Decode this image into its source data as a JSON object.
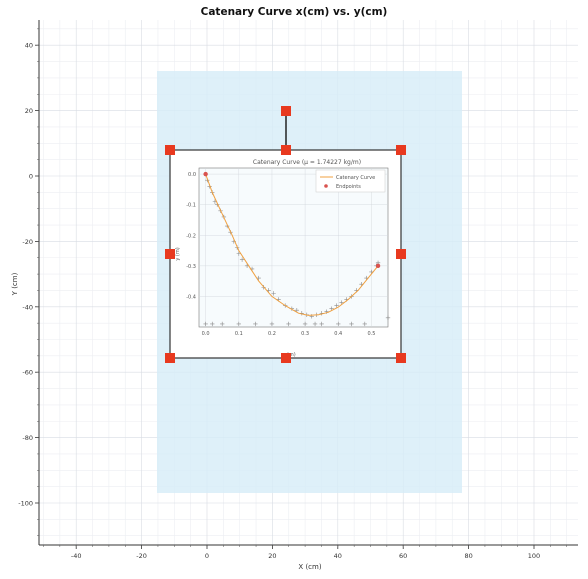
{
  "window": {
    "title": "Catenary Curve x(cm) vs. y(cm)"
  },
  "axes": {
    "xlabel": "X (cm)",
    "ylabel": "Y (cm)",
    "x_ticks": [
      "-40",
      "-20",
      "0",
      "20",
      "40",
      "60",
      "80",
      "100"
    ],
    "y_ticks": [
      "40",
      "20",
      "0",
      "-20",
      "-40",
      "-60",
      "-80",
      "-100"
    ]
  },
  "colors": {
    "background": "#ffffff",
    "grid_major": "#d8dce3",
    "grid_minor": "#eceef2",
    "selection_fill": "#d6ecf8",
    "frame": "#333333",
    "handle": "#e8391f",
    "curve": "#f0a040",
    "marker": "#8a8a8a",
    "endpoint": "#d9534f"
  },
  "handles": {
    "rotate": "rotate-handle",
    "corners": [
      "top-left",
      "top-right",
      "bottom-left",
      "bottom-right"
    ],
    "edges": [
      "top-middle",
      "bottom-middle",
      "middle-left",
      "middle-right"
    ]
  },
  "embedded_plot": {
    "title": "Catenary Curve (μ = 1.74227 kg/m)",
    "legend": {
      "curve_label": "Catenary Curve",
      "endpoints_label": "Endpoints"
    },
    "x_ticks": [
      "0.0",
      "0.1",
      "0.2",
      "0.3",
      "0.4",
      "0.5"
    ],
    "y_ticks": [
      "0.0",
      "-0.1",
      "-0.2",
      "-0.3",
      "-0.4"
    ],
    "xlabel": "x (m)",
    "ylabel": "y (m)"
  },
  "chart_data": {
    "type": "line",
    "title": "Catenary Curve (μ = 1.74227 kg/m)",
    "xlabel": "x (m)",
    "ylabel": "y (m)",
    "xlim": [
      -0.02,
      0.55
    ],
    "ylim": [
      -0.5,
      0.02
    ],
    "grid": true,
    "legend_position": "top-right",
    "series": [
      {
        "name": "Catenary Curve",
        "x": [
          0.0,
          0.02,
          0.05,
          0.08,
          0.1,
          0.13,
          0.16,
          0.2,
          0.24,
          0.28,
          0.31,
          0.34,
          0.37,
          0.4,
          0.43,
          0.46,
          0.49,
          0.52
        ],
        "y": [
          0.0,
          -0.06,
          -0.13,
          -0.2,
          -0.25,
          -0.3,
          -0.35,
          -0.4,
          -0.43,
          -0.455,
          -0.462,
          -0.46,
          -0.452,
          -0.435,
          -0.41,
          -0.38,
          -0.34,
          -0.3
        ]
      },
      {
        "name": "Endpoints",
        "x": [
          0.0,
          0.52
        ],
        "y": [
          0.0,
          -0.3
        ]
      }
    ],
    "scatter_points": {
      "x": [
        0.005,
        0.012,
        0.02,
        0.028,
        0.035,
        0.045,
        0.055,
        0.065,
        0.075,
        0.085,
        0.095,
        0.1,
        0.11,
        0.125,
        0.14,
        0.16,
        0.175,
        0.19,
        0.205,
        0.22,
        0.24,
        0.26,
        0.275,
        0.29,
        0.305,
        0.32,
        0.335,
        0.35,
        0.365,
        0.38,
        0.395,
        0.41,
        0.425,
        0.44,
        0.455,
        0.47,
        0.485,
        0.5,
        0.515,
        0.52,
        0.0,
        0.02,
        0.05,
        0.1,
        0.15,
        0.2,
        0.25,
        0.3,
        0.33,
        0.35,
        0.4,
        0.44,
        0.48,
        0.55
      ],
      "y": [
        -0.02,
        -0.04,
        -0.06,
        -0.09,
        -0.1,
        -0.12,
        -0.14,
        -0.17,
        -0.19,
        -0.22,
        -0.24,
        -0.26,
        -0.28,
        -0.3,
        -0.31,
        -0.34,
        -0.37,
        -0.38,
        -0.39,
        -0.41,
        -0.43,
        -0.44,
        -0.445,
        -0.455,
        -0.46,
        -0.465,
        -0.46,
        -0.455,
        -0.45,
        -0.44,
        -0.43,
        -0.42,
        -0.41,
        -0.4,
        -0.38,
        -0.36,
        -0.34,
        -0.32,
        -0.3,
        -0.29,
        -0.49,
        -0.49,
        -0.49,
        -0.49,
        -0.49,
        -0.49,
        -0.49,
        -0.49,
        -0.49,
        -0.49,
        -0.49,
        -0.49,
        -0.49,
        -0.47
      ]
    }
  }
}
